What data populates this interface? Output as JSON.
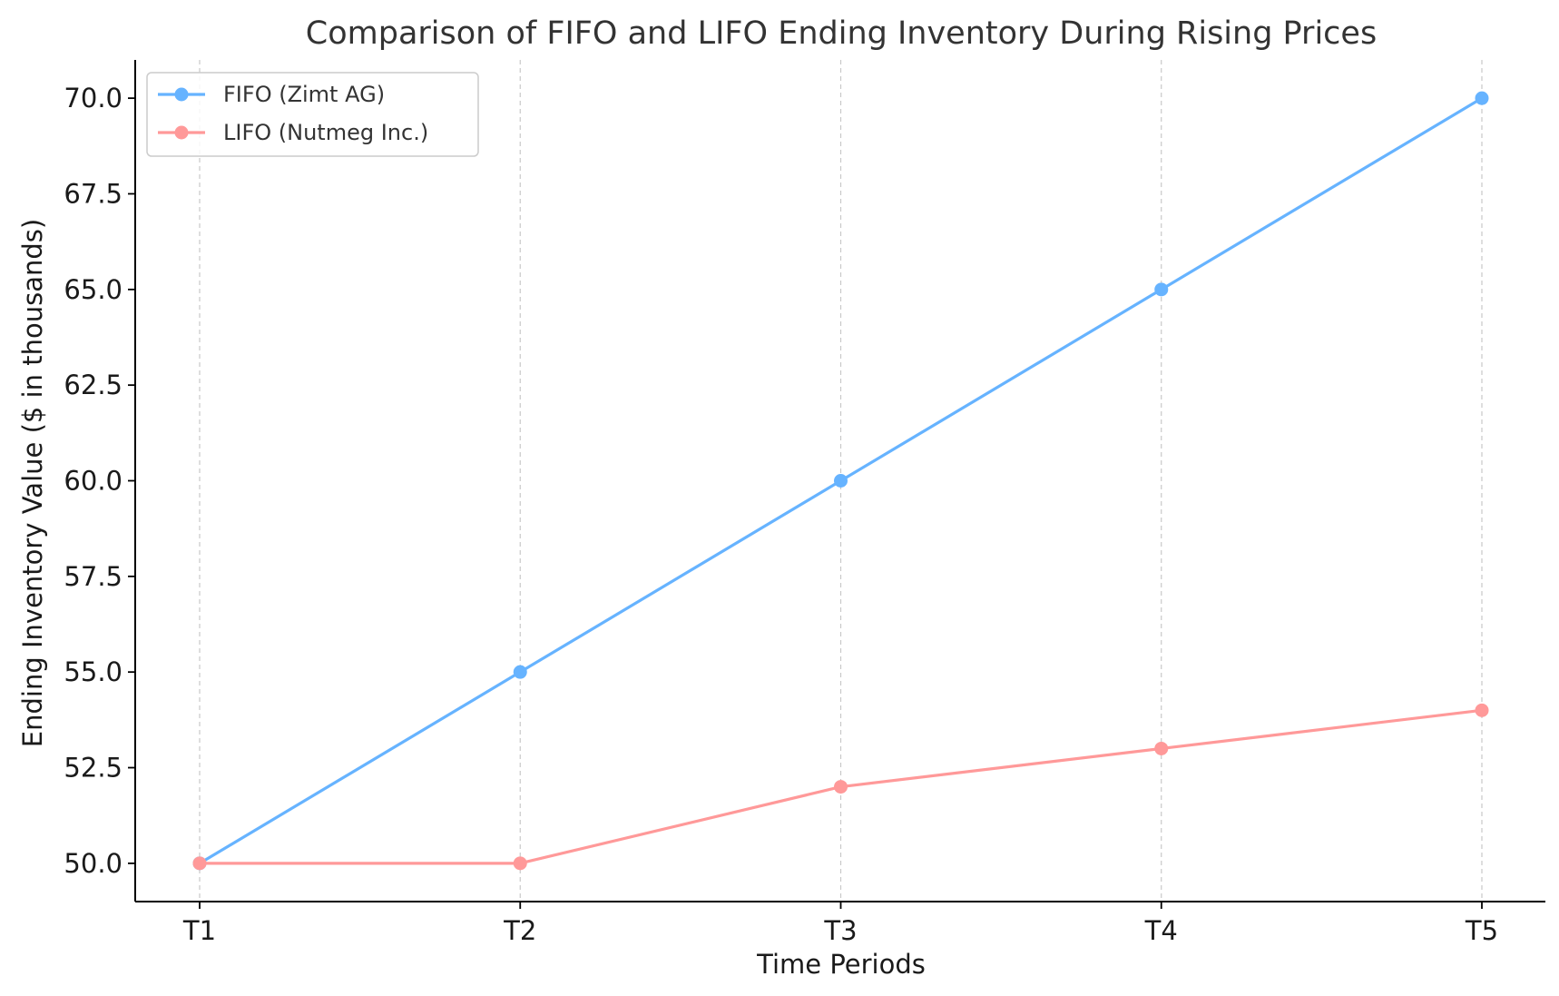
{
  "chart_data": {
    "type": "line",
    "title": "Comparison of FIFO and LIFO Ending Inventory During Rising Prices",
    "xlabel": "Time Periods",
    "ylabel": "Ending Inventory Value ($ in thousands)",
    "categories": [
      "T1",
      "T2",
      "T3",
      "T4",
      "T5"
    ],
    "ylim": [
      49.0,
      71.0
    ],
    "yticks": [
      "50.0",
      "52.5",
      "55.0",
      "57.5",
      "60.0",
      "62.5",
      "65.0",
      "67.5",
      "70.0"
    ],
    "grid": "vertical-dashed",
    "legend_position": "top-left",
    "series": [
      {
        "name": "FIFO (Zimt AG)",
        "color": "#66b3ff",
        "values": [
          50,
          55,
          60,
          65,
          70
        ]
      },
      {
        "name": "LIFO (Nutmeg Inc.)",
        "color": "#ff9999",
        "values": [
          50,
          50,
          52,
          53,
          54
        ]
      }
    ]
  }
}
